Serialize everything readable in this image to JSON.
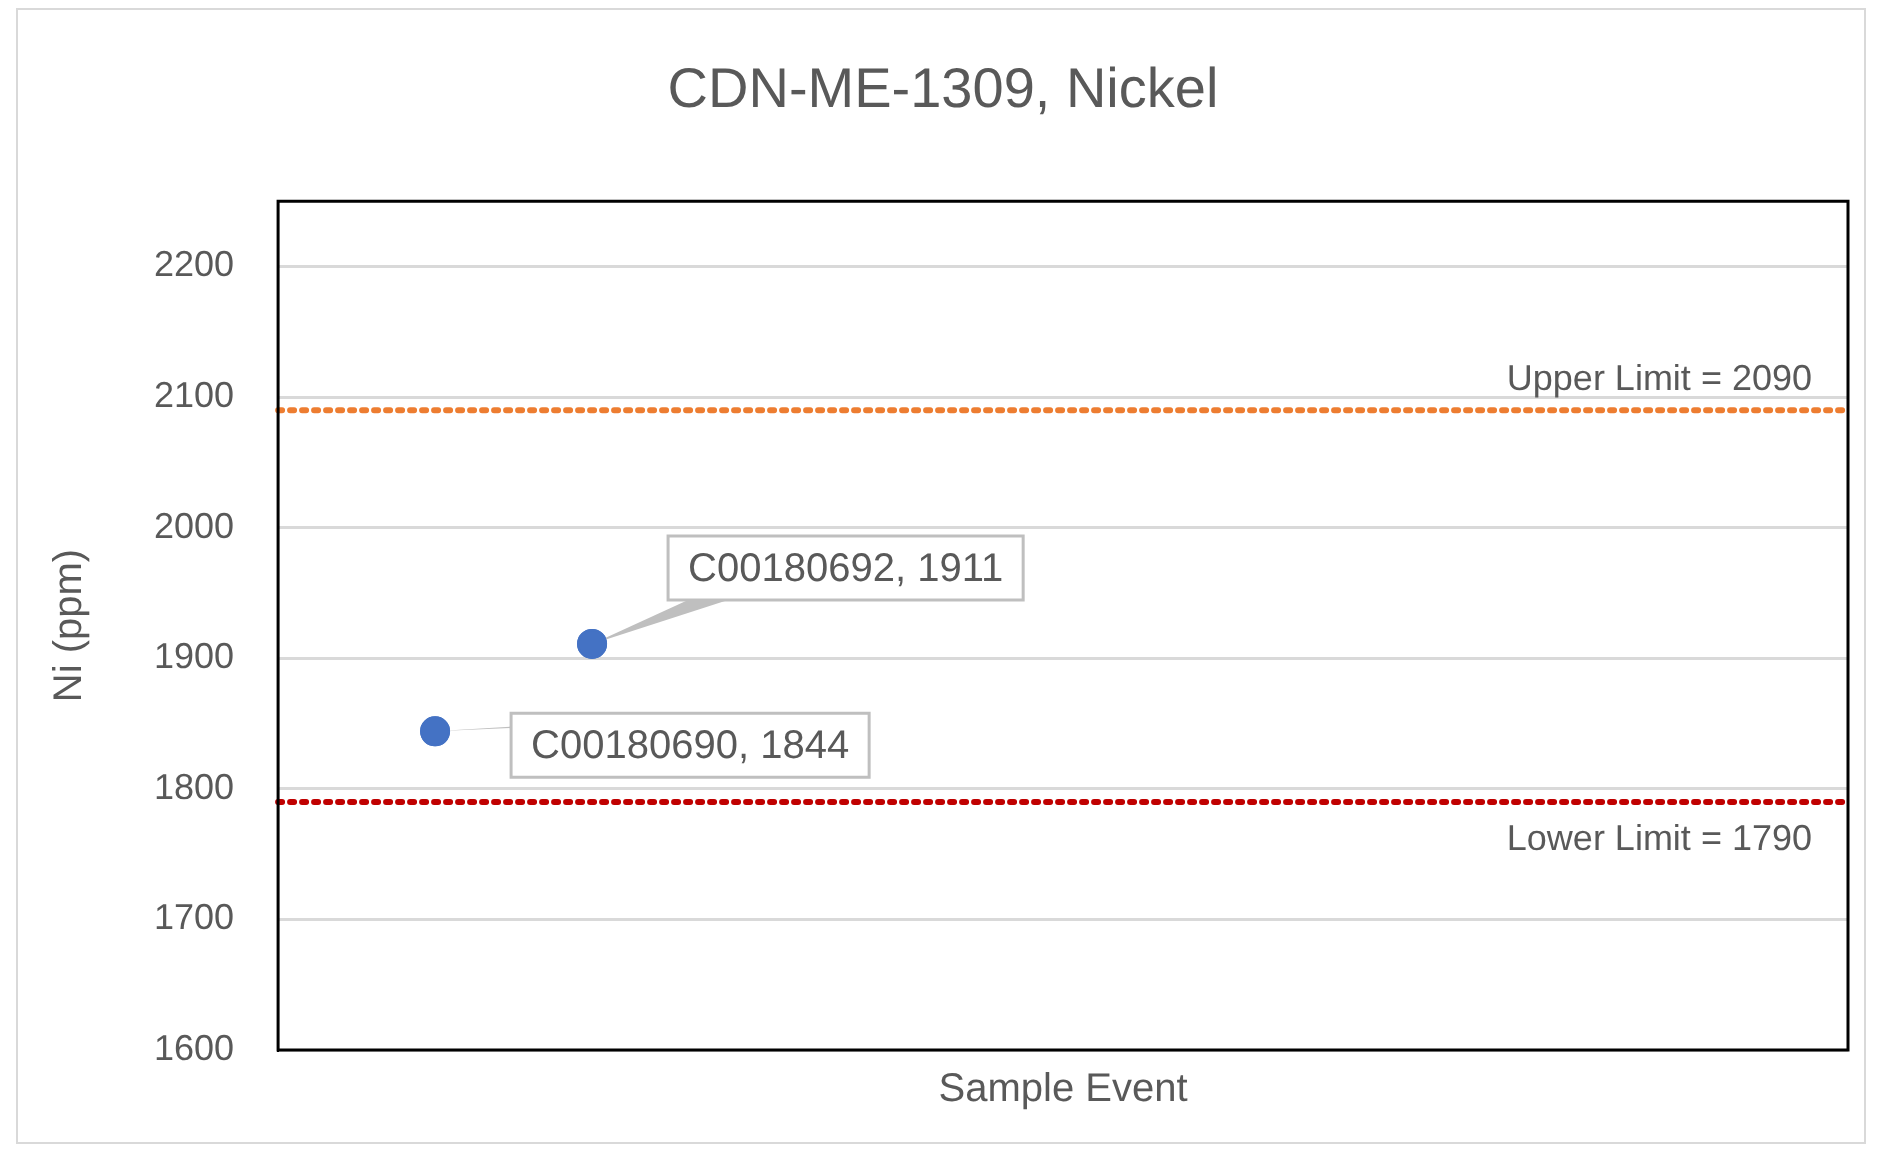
{
  "chart_data": {
    "type": "scatter",
    "title": "CDN-ME-1309, Nickel",
    "xlabel": "Sample Event",
    "ylabel": "Ni (ppm)",
    "categories": [
      null,
      null,
      null,
      null,
      null,
      null,
      null,
      null,
      null,
      null,
      null
    ],
    "series": [
      {
        "values": [
          null,
          1844,
          1911,
          null,
          null,
          null,
          null,
          null,
          null,
          null,
          null
        ],
        "color": "#4472c4",
        "value_labels": [
          null,
          "C00180690, 1844",
          "C00180692, 1911",
          null,
          null,
          null,
          null,
          null,
          null,
          null,
          null
        ]
      }
    ],
    "ylim": [
      1600,
      2250
    ],
    "yticks": [
      1600,
      1700,
      1800,
      1900,
      2000,
      2100,
      2200
    ],
    "tick_labels": "y",
    "grid": "y",
    "marker": "circle",
    "legend": false,
    "ref_lines": [
      {
        "axis": "y",
        "value": 2090,
        "label": "Upper Limit = 2090",
        "color": "#ed7d31",
        "line_style": "dotted"
      },
      {
        "axis": "y",
        "value": 1790,
        "label": "Lower Limit = 1790",
        "color": "#c00000",
        "line_style": "dotted"
      }
    ]
  }
}
